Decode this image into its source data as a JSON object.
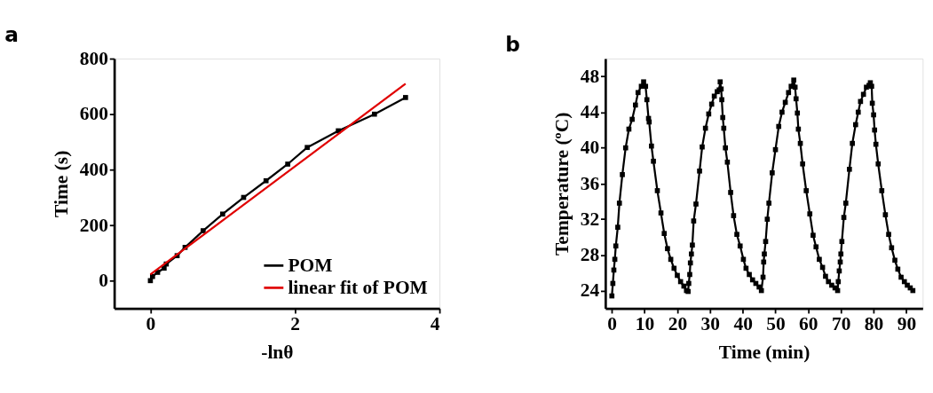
{
  "chart_data": [
    {
      "type": "line",
      "title": "a",
      "xlabel": "-lnθ",
      "ylabel": "Time (s)",
      "xlim": [
        -0.5,
        4
      ],
      "xticks": [
        0,
        2,
        4
      ],
      "ylim": [
        -100,
        800
      ],
      "yticks": [
        0,
        200,
        400,
        600,
        800
      ],
      "grid": false,
      "legend": "bottom right",
      "marker": "square",
      "line_style": "solid",
      "series": [
        {
          "name": "POM",
          "color": "#000000",
          "x": [
            0,
            0.03,
            0.1,
            0.19,
            0.22,
            0.37,
            0.48,
            0.73,
            1.0,
            1.29,
            1.6,
            1.9,
            2.17,
            2.6,
            3.1,
            3.53
          ],
          "values": [
            0,
            15,
            30,
            45,
            60,
            90,
            120,
            180,
            240,
            300,
            360,
            420,
            480,
            540,
            600,
            660
          ]
        },
        {
          "name": "linear fit of POM",
          "color": "#e00000",
          "type": "line",
          "marker": "none",
          "x": [
            0,
            3.53
          ],
          "values": [
            22,
            710
          ]
        }
      ]
    },
    {
      "type": "line",
      "title": "b",
      "xlabel": "Time (min)",
      "ylabel": "Temperature (ºC)",
      "xlim": [
        -2,
        95
      ],
      "xticks": [
        0,
        10,
        20,
        30,
        40,
        50,
        60,
        70,
        80,
        90
      ],
      "ylim": [
        22,
        50
      ],
      "yticks": [
        24,
        28,
        32,
        36,
        40,
        44,
        48
      ],
      "grid": false,
      "legend": false,
      "marker": "square",
      "line_style": "solid",
      "series": [
        {
          "color": "#000000",
          "x": [
            0,
            0.3,
            0.6,
            0.9,
            1.2,
            1.8,
            2.3,
            3.2,
            4.2,
            5.2,
            6.2,
            7.2,
            8.0,
            9.0,
            9.7,
            10.3,
            10.7,
            11.2,
            11.4,
            12.1,
            12.7,
            13.9,
            15.0,
            16.0,
            17.0,
            18.0,
            19.0,
            20.0,
            21.0,
            22.0,
            22.8,
            23.3,
            23.5,
            23.8,
            24.0,
            24.3,
            24.6,
            25.0,
            25.7,
            26.8,
            27.6,
            28.6,
            29.6,
            30.5,
            31.3,
            32.2,
            32.8,
            33.1,
            33.4,
            33.6,
            33.9,
            34.2,
            34.7,
            35.3,
            36.3,
            37.2,
            38.2,
            39.2,
            40.2,
            41.0,
            42.0,
            43.0,
            44.0,
            45.0,
            45.7,
            46.2,
            46.4,
            46.6,
            47.0,
            47.5,
            48.0,
            49.0,
            50.0,
            51.0,
            52.0,
            53.0,
            54.0,
            54.8,
            55.6,
            56.0,
            56.3,
            56.7,
            57.0,
            57.6,
            58.3,
            59.4,
            60.5,
            61.5,
            62.4,
            63.4,
            64.4,
            65.3,
            66.2,
            67.2,
            68.2,
            69.0,
            69.2,
            69.5,
            69.8,
            70.0,
            70.3,
            70.9,
            71.5,
            72.6,
            73.5,
            74.5,
            75.3,
            76.0,
            76.9,
            77.8,
            78.6,
            79.0,
            79.4,
            79.6,
            80.0,
            80.3,
            80.7,
            81.4,
            82.5,
            83.6,
            84.6,
            85.5,
            86.5,
            87.4,
            88.4,
            89.4,
            90.3,
            91.2,
            92.0
          ],
          "values": [
            23.4,
            24.8,
            26.3,
            27.5,
            29.0,
            31.1,
            33.8,
            37.0,
            40.0,
            42.1,
            43.2,
            44.8,
            46.2,
            46.9,
            47.4,
            46.9,
            45.4,
            43.3,
            42.9,
            40.2,
            38.5,
            35.2,
            32.7,
            30.4,
            28.7,
            27.5,
            26.5,
            25.7,
            25.0,
            24.5,
            24.0,
            23.9,
            24.8,
            25.8,
            27.1,
            28.1,
            29.1,
            31.8,
            33.7,
            37.4,
            40.1,
            42.2,
            43.8,
            44.9,
            45.8,
            46.3,
            46.5,
            47.4,
            46.6,
            45.4,
            43.4,
            42.2,
            40.0,
            38.4,
            35.0,
            32.4,
            30.3,
            29.0,
            27.5,
            26.5,
            25.8,
            25.2,
            24.8,
            24.4,
            24.0,
            25.5,
            27.2,
            28.1,
            29.5,
            32.0,
            33.8,
            37.2,
            39.8,
            42.4,
            44.0,
            45.1,
            46.2,
            46.9,
            47.6,
            46.8,
            45.5,
            43.9,
            42.1,
            40.5,
            38.2,
            35.2,
            32.6,
            30.2,
            28.9,
            27.5,
            26.6,
            25.6,
            25.0,
            24.6,
            24.3,
            24.0,
            25.0,
            26.2,
            27.2,
            28.1,
            29.5,
            32.2,
            33.8,
            37.6,
            40.5,
            42.6,
            44.0,
            45.2,
            46.0,
            46.8,
            47.0,
            47.3,
            46.9,
            45.0,
            43.7,
            42.0,
            40.4,
            38.2,
            35.2,
            32.5,
            30.3,
            28.8,
            27.4,
            26.4,
            25.5,
            25.0,
            24.6,
            24.3,
            24.0
          ]
        }
      ]
    }
  ]
}
